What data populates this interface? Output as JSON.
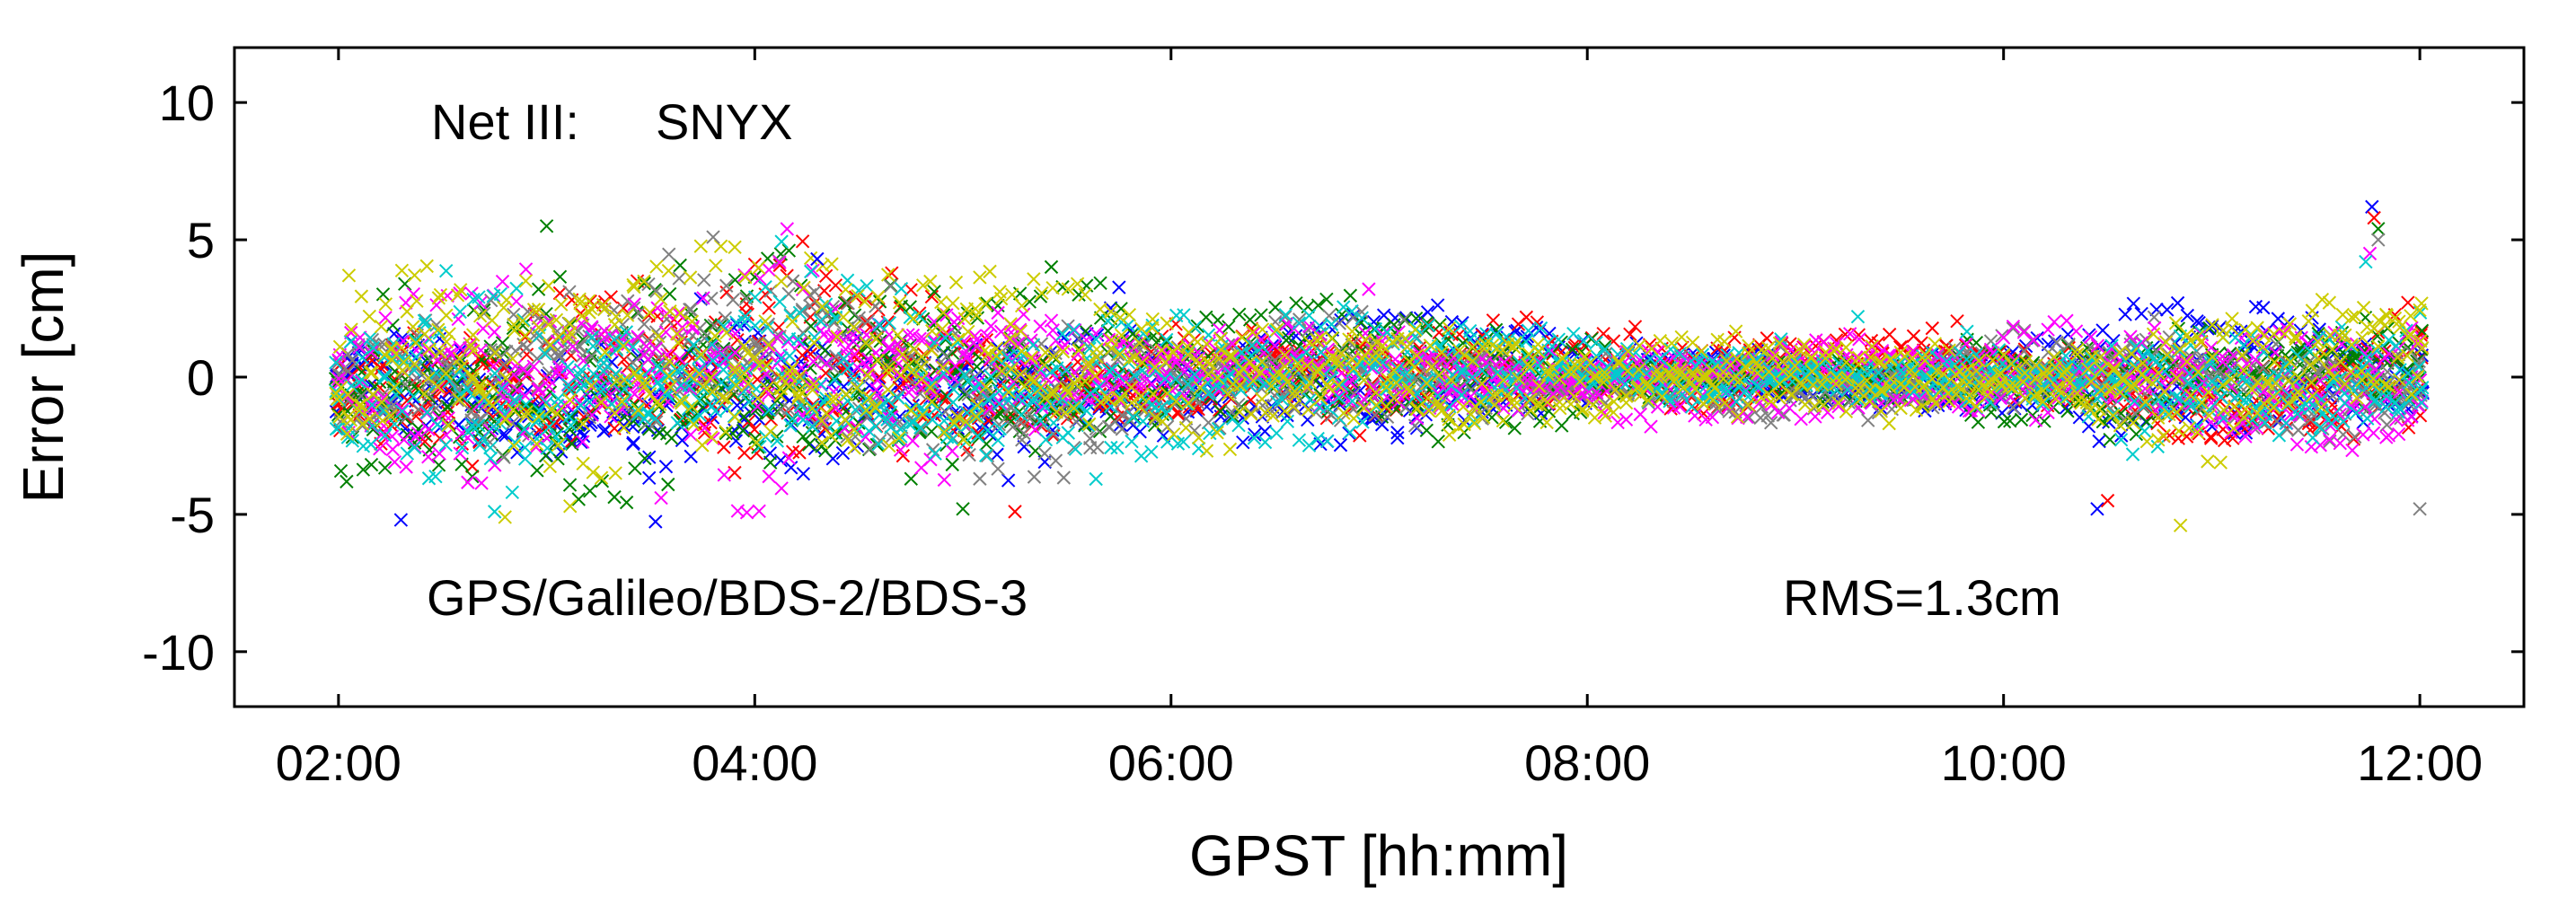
{
  "chart_data": {
    "type": "scatter",
    "marker": "x",
    "xlabel": "GPST [hh:mm]",
    "ylabel": "Error [cm]",
    "xlim": [
      1.5,
      12.5
    ],
    "ylim": [
      -12,
      12
    ],
    "xticks": [
      {
        "value": 2,
        "label": "02:00"
      },
      {
        "value": 4,
        "label": "04:00"
      },
      {
        "value": 6,
        "label": "06:00"
      },
      {
        "value": 8,
        "label": "08:00"
      },
      {
        "value": 10,
        "label": "10:00"
      },
      {
        "value": 12,
        "label": "12:00"
      }
    ],
    "yticks": [
      {
        "value": 10,
        "label": "10"
      },
      {
        "value": 5,
        "label": "5"
      },
      {
        "value": 0,
        "label": "0"
      },
      {
        "value": -5,
        "label": "-5"
      },
      {
        "value": -10,
        "label": "-10"
      }
    ],
    "grid": false,
    "annotations": {
      "net": "Net III:",
      "station": "SNYX",
      "systems": "GPS/Galileo/BDS-2/BDS-3",
      "rms": "RMS=1.3cm"
    },
    "series_colors": [
      "#0000ff",
      "#ff0000",
      "#008000",
      "#808080",
      "#ff00ff",
      "#00cccc",
      "#cccc00"
    ],
    "envelope_cm": [
      {
        "x": 2.0,
        "amp": 3.0
      },
      {
        "x": 3.0,
        "amp": 3.5
      },
      {
        "x": 4.0,
        "amp": 3.3
      },
      {
        "x": 5.0,
        "amp": 2.8
      },
      {
        "x": 6.0,
        "amp": 1.6
      },
      {
        "x": 7.0,
        "amp": 1.8
      },
      {
        "x": 8.0,
        "amp": 1.2
      },
      {
        "x": 9.0,
        "amp": 1.0
      },
      {
        "x": 10.0,
        "amp": 1.3
      },
      {
        "x": 11.0,
        "amp": 2.0
      },
      {
        "x": 12.0,
        "amp": 2.0
      }
    ],
    "highlights": [
      {
        "x": 11.77,
        "y": 6.2
      },
      {
        "x": 11.78,
        "y": 5.8
      },
      {
        "x": 11.8,
        "y": 5.4
      },
      {
        "x": 11.8,
        "y": 5.0
      },
      {
        "x": 11.76,
        "y": 4.5
      },
      {
        "x": 11.74,
        "y": 4.2
      },
      {
        "x": 10.85,
        "y": -5.4
      },
      {
        "x": 10.45,
        "y": -4.8
      },
      {
        "x": 10.5,
        "y": -4.5
      },
      {
        "x": 3.0,
        "y": 5.5
      },
      {
        "x": 3.8,
        "y": 5.1
      },
      {
        "x": 3.55,
        "y": -4.4
      },
      {
        "x": 2.75,
        "y": -4.9
      },
      {
        "x": 2.8,
        "y": -5.1
      },
      {
        "x": 2.3,
        "y": -5.2
      },
      {
        "x": 5.25,
        "y": -4.9
      },
      {
        "x": 5.0,
        "y": -4.8
      },
      {
        "x": 12.0,
        "y": -4.8
      },
      {
        "x": 6.95,
        "y": 3.2
      },
      {
        "x": 9.3,
        "y": 2.2
      },
      {
        "x": 2.05,
        "y": 3.7
      },
      {
        "x": 4.3,
        "y": 4.3
      }
    ]
  }
}
